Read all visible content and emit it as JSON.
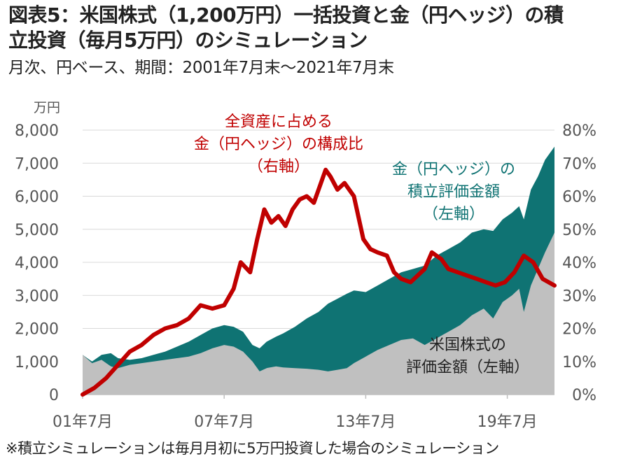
{
  "header": {
    "title_line1": "図表5：米国株式（1,200万円）一括投資と金（円ヘッジ）の積",
    "title_line2": "立投資（毎月5万円）のシミュレーション",
    "subtitle": "月次、円ベース、期間：2001年7月末～2021年7月末"
  },
  "footnote": "※積立シミュレーションは毎月月初に5万円投資した場合のシミュレーション",
  "colors": {
    "stock": "#c0c0c0",
    "gold": "#0f7373",
    "share": "#c00000",
    "grid": "#d9d9d9",
    "axis_text": "#555555"
  },
  "chart_data": {
    "type": "area",
    "left_unit": "万円",
    "left_axis": {
      "min": 0,
      "max": 8000,
      "ticks": [
        "0",
        "1,000",
        "2,000",
        "3,000",
        "4,000",
        "5,000",
        "6,000",
        "7,000",
        "8,000"
      ]
    },
    "right_axis": {
      "min": 0,
      "max": 80,
      "ticks": [
        "0%",
        "10%",
        "20%",
        "30%",
        "40%",
        "50%",
        "60%",
        "70%",
        "80%"
      ]
    },
    "x_axis": {
      "start": 2001.5,
      "end": 2021.5,
      "ticks": [
        {
          "x": 2001.5,
          "label": "01年7月"
        },
        {
          "x": 2007.5,
          "label": "07年7月"
        },
        {
          "x": 2013.5,
          "label": "13年7月"
        },
        {
          "x": 2019.5,
          "label": "19年7月"
        }
      ]
    },
    "grid": true,
    "series": [
      {
        "name": "米国株式の評価金額（左軸）",
        "axis": "left",
        "label_lines": [
          "米国株式の",
          "評価金額（左軸）"
        ],
        "points": [
          [
            2001.5,
            1200
          ],
          [
            2001.9,
            950
          ],
          [
            2002.3,
            1050
          ],
          [
            2002.7,
            850
          ],
          [
            2003.0,
            800
          ],
          [
            2003.5,
            900
          ],
          [
            2004.0,
            950
          ],
          [
            2004.5,
            1000
          ],
          [
            2005.0,
            1050
          ],
          [
            2005.5,
            1100
          ],
          [
            2006.0,
            1150
          ],
          [
            2006.5,
            1250
          ],
          [
            2007.0,
            1400
          ],
          [
            2007.5,
            1500
          ],
          [
            2007.9,
            1450
          ],
          [
            2008.3,
            1300
          ],
          [
            2008.7,
            1000
          ],
          [
            2009.0,
            700
          ],
          [
            2009.3,
            800
          ],
          [
            2009.7,
            850
          ],
          [
            2010.0,
            820
          ],
          [
            2010.5,
            800
          ],
          [
            2011.0,
            780
          ],
          [
            2011.5,
            750
          ],
          [
            2011.9,
            700
          ],
          [
            2012.3,
            750
          ],
          [
            2012.7,
            800
          ],
          [
            2013.0,
            950
          ],
          [
            2013.5,
            1150
          ],
          [
            2014.0,
            1350
          ],
          [
            2014.5,
            1500
          ],
          [
            2015.0,
            1650
          ],
          [
            2015.5,
            1700
          ],
          [
            2016.0,
            1500
          ],
          [
            2016.5,
            1700
          ],
          [
            2017.0,
            1900
          ],
          [
            2017.5,
            2100
          ],
          [
            2018.0,
            2400
          ],
          [
            2018.5,
            2600
          ],
          [
            2018.9,
            2300
          ],
          [
            2019.3,
            2800
          ],
          [
            2019.7,
            3000
          ],
          [
            2020.0,
            3200
          ],
          [
            2020.2,
            2500
          ],
          [
            2020.5,
            3300
          ],
          [
            2020.8,
            3800
          ],
          [
            2021.1,
            4300
          ],
          [
            2021.5,
            4900
          ]
        ]
      },
      {
        "name": "金（円ヘッジ）の積立評価金額（左軸）",
        "axis": "left",
        "label_lines": [
          "金（円ヘッジ）の",
          "積立評価金額",
          "（左軸）"
        ],
        "points": [
          [
            2001.5,
            1200
          ],
          [
            2001.9,
            1000
          ],
          [
            2002.3,
            1200
          ],
          [
            2002.7,
            1250
          ],
          [
            2003.0,
            1100
          ],
          [
            2003.5,
            1050
          ],
          [
            2004.0,
            1100
          ],
          [
            2004.5,
            1200
          ],
          [
            2005.0,
            1300
          ],
          [
            2005.5,
            1450
          ],
          [
            2006.0,
            1600
          ],
          [
            2006.5,
            1800
          ],
          [
            2007.0,
            2000
          ],
          [
            2007.5,
            2100
          ],
          [
            2007.9,
            2050
          ],
          [
            2008.3,
            1900
          ],
          [
            2008.7,
            1500
          ],
          [
            2009.0,
            1400
          ],
          [
            2009.3,
            1600
          ],
          [
            2009.7,
            1750
          ],
          [
            2010.0,
            1850
          ],
          [
            2010.5,
            2050
          ],
          [
            2011.0,
            2300
          ],
          [
            2011.5,
            2500
          ],
          [
            2011.9,
            2750
          ],
          [
            2012.3,
            2900
          ],
          [
            2012.7,
            3050
          ],
          [
            2013.0,
            3150
          ],
          [
            2013.5,
            3100
          ],
          [
            2014.0,
            3300
          ],
          [
            2014.5,
            3500
          ],
          [
            2015.0,
            3700
          ],
          [
            2015.5,
            3800
          ],
          [
            2016.0,
            3900
          ],
          [
            2016.5,
            4200
          ],
          [
            2017.0,
            4400
          ],
          [
            2017.5,
            4600
          ],
          [
            2018.0,
            4900
          ],
          [
            2018.5,
            5000
          ],
          [
            2018.9,
            4950
          ],
          [
            2019.3,
            5300
          ],
          [
            2019.7,
            5500
          ],
          [
            2020.0,
            5700
          ],
          [
            2020.2,
            5300
          ],
          [
            2020.5,
            6200
          ],
          [
            2020.8,
            6600
          ],
          [
            2021.1,
            7100
          ],
          [
            2021.5,
            7500
          ]
        ]
      },
      {
        "name": "全資産に占める金（円ヘッジ）の構成比（右軸）",
        "axis": "right",
        "label_lines": [
          "全資産に占める",
          "金（円ヘッジ）の構成比",
          "（右軸）"
        ],
        "points": [
          [
            2001.5,
            0
          ],
          [
            2002.0,
            2
          ],
          [
            2002.5,
            5
          ],
          [
            2003.0,
            9
          ],
          [
            2003.5,
            13
          ],
          [
            2004.0,
            15
          ],
          [
            2004.5,
            18
          ],
          [
            2005.0,
            20
          ],
          [
            2005.5,
            21
          ],
          [
            2006.0,
            23
          ],
          [
            2006.5,
            27
          ],
          [
            2007.0,
            26
          ],
          [
            2007.5,
            27
          ],
          [
            2007.9,
            32
          ],
          [
            2008.2,
            40
          ],
          [
            2008.6,
            37
          ],
          [
            2008.9,
            47
          ],
          [
            2009.2,
            56
          ],
          [
            2009.5,
            52
          ],
          [
            2009.8,
            54
          ],
          [
            2010.1,
            51
          ],
          [
            2010.4,
            56
          ],
          [
            2010.7,
            59
          ],
          [
            2011.0,
            60
          ],
          [
            2011.3,
            58
          ],
          [
            2011.6,
            64
          ],
          [
            2011.8,
            68
          ],
          [
            2012.0,
            66
          ],
          [
            2012.3,
            62
          ],
          [
            2012.6,
            64
          ],
          [
            2013.0,
            60
          ],
          [
            2013.4,
            47
          ],
          [
            2013.7,
            44
          ],
          [
            2014.0,
            43
          ],
          [
            2014.4,
            42
          ],
          [
            2014.7,
            37
          ],
          [
            2015.0,
            35
          ],
          [
            2015.4,
            34
          ],
          [
            2015.7,
            36
          ],
          [
            2016.0,
            38
          ],
          [
            2016.3,
            43
          ],
          [
            2016.7,
            41
          ],
          [
            2017.0,
            38
          ],
          [
            2017.4,
            37
          ],
          [
            2017.8,
            36
          ],
          [
            2018.2,
            35
          ],
          [
            2018.6,
            34
          ],
          [
            2019.0,
            33
          ],
          [
            2019.4,
            34
          ],
          [
            2019.8,
            37
          ],
          [
            2020.2,
            42
          ],
          [
            2020.6,
            40
          ],
          [
            2021.0,
            35
          ],
          [
            2021.5,
            33
          ]
        ]
      }
    ]
  }
}
